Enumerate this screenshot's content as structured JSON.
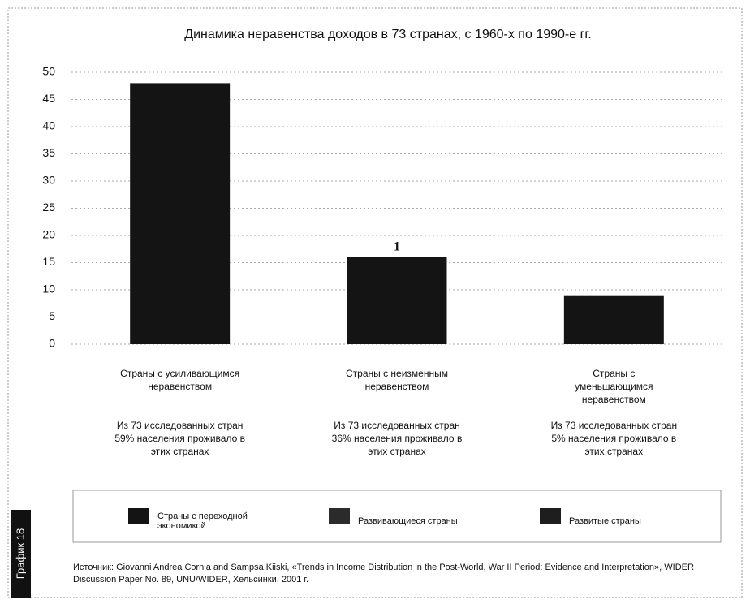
{
  "chart_data": {
    "type": "bar",
    "title": "Динамика неравенства доходов в 73 странах, с 1960-х по 1990-е гг.",
    "categories": [
      "Страны с усиливающимся неравенством",
      "Страны с неизменным неравенством",
      "Страны с уменьшающимся неравенством"
    ],
    "notes": [
      "Из 73 исследованных стран 59% населения проживало в этих странах",
      "Из 73 исследованных стран 36% населения проживало в этих странах",
      "Из 73 исследованных стран 5% населения проживало в этих странах"
    ],
    "values": [
      48,
      16,
      9
    ],
    "color": "#141414",
    "annotation": "1",
    "ylim": [
      0,
      50
    ],
    "yticks": [
      0,
      5,
      10,
      15,
      20,
      25,
      30,
      35,
      40,
      45,
      50
    ],
    "grid": true,
    "legend": [
      {
        "name": "Страны с переходной экономикой",
        "color": "#141414"
      },
      {
        "name": "Развивающиеся страны",
        "color": "#2b2b2b"
      },
      {
        "name": "Развитые страны",
        "color": "#1e1e1e"
      }
    ],
    "side_label": "График 18",
    "source": "Источник: Giovanni Andrea Cornia and Sampsa Kiiski, «Trends in Income Distribution in the Post-World, War II Period: Evidence and Interpretation», WIDER Discussion Paper No. 89, UNU/WIDER, Хельсинки, 2001 г."
  }
}
